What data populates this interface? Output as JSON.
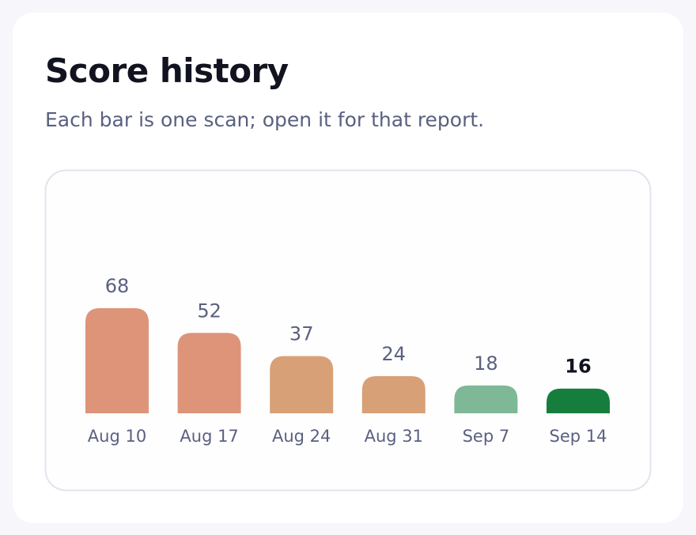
{
  "chart_data": {
    "type": "bar",
    "title": "Score history",
    "subtitle": "Each bar is one scan; open it for that report.",
    "categories": [
      "Aug 10",
      "Aug 17",
      "Aug 24",
      "Aug 31",
      "Sep 7",
      "Sep 14"
    ],
    "values": [
      68,
      52,
      37,
      24,
      18,
      16
    ],
    "colors": [
      "#dd9479",
      "#dd9479",
      "#d8a077",
      "#d8a077",
      "#7fb896",
      "#167e3d"
    ]
  }
}
